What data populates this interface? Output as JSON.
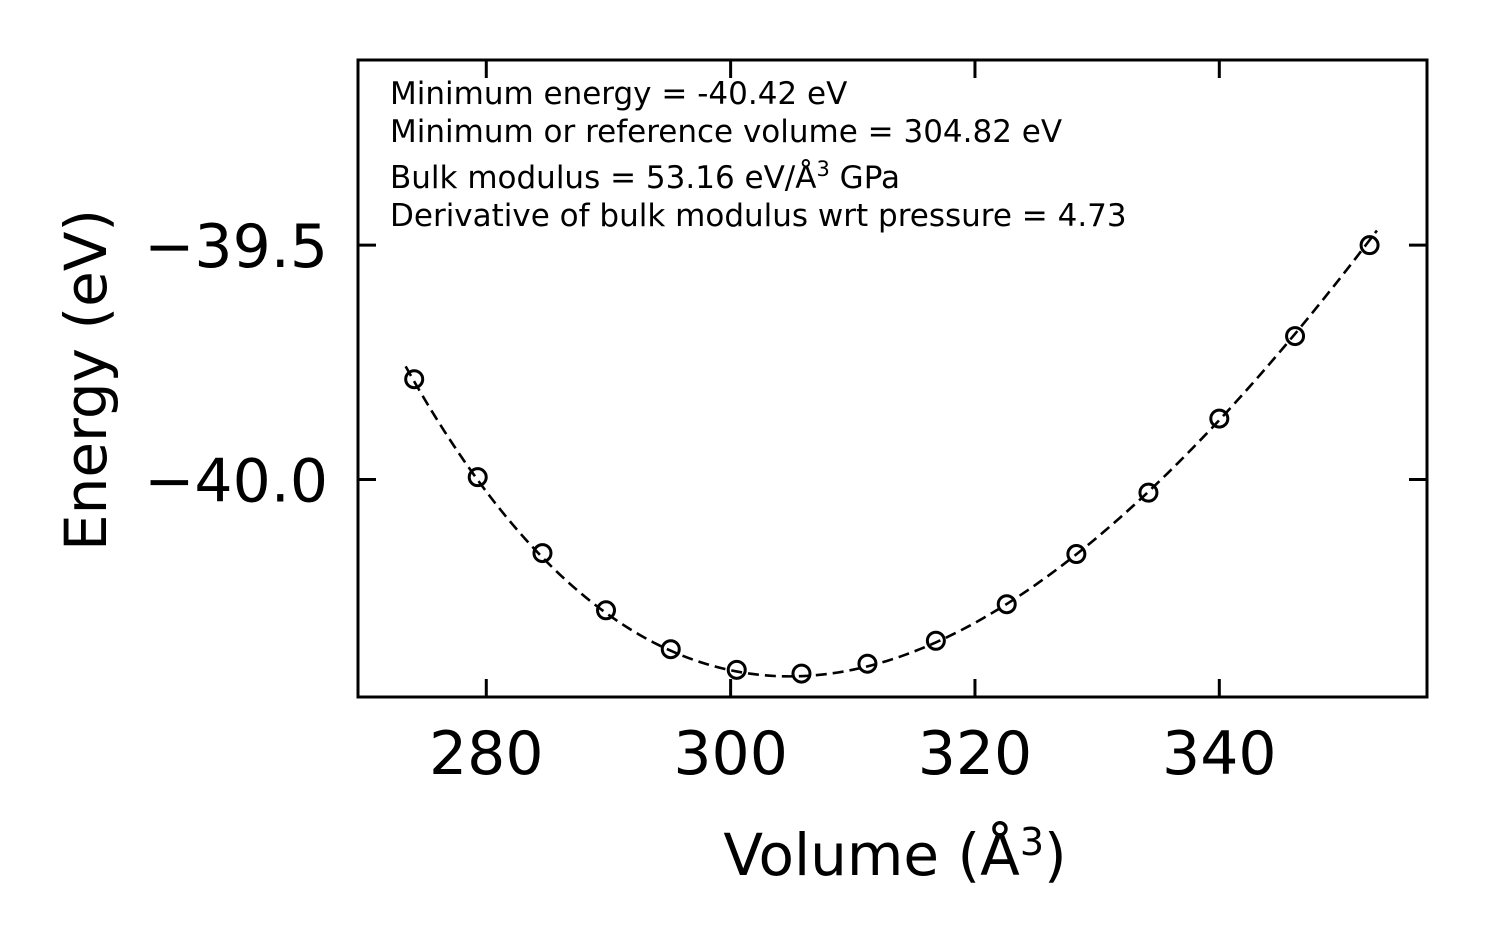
{
  "chart_data": {
    "type": "scatter",
    "title": "",
    "xlabel": "Volume (Å",
    "xlabel_sup": "3",
    "xlabel_close": ")",
    "ylabel": "Energy (eV)",
    "xlim": [
      269.5,
      357.0
    ],
    "ylim": [
      -40.464,
      -39.105
    ],
    "xticks": [
      280,
      300,
      320,
      340
    ],
    "xtick_labels": [
      "280",
      "300",
      "320",
      "340"
    ],
    "yticks": [
      -39.5,
      -40.0
    ],
    "ytick_labels": [
      "−39.5",
      "−40.0"
    ],
    "legend": "none",
    "grid": false,
    "series": [
      {
        "name": "data",
        "style": "open-circle",
        "x": [
          274.1,
          279.3,
          284.6,
          289.8,
          295.1,
          300.5,
          305.8,
          311.2,
          316.8,
          322.6,
          328.3,
          334.2,
          340.0,
          346.2,
          352.3
        ],
        "y": [
          -39.786,
          -39.995,
          -40.157,
          -40.279,
          -40.362,
          -40.406,
          -40.414,
          -40.393,
          -40.344,
          -40.266,
          -40.159,
          -40.028,
          -39.87,
          -39.694,
          -39.5
        ]
      },
      {
        "name": "fit",
        "style": "dashed-line",
        "fit": {
          "E0": -40.42,
          "V0": 304.82,
          "B0_eV_per_A3": 0.3318,
          "B0_prime": 4.73,
          "x_range": [
            273.4,
            352.9
          ]
        }
      }
    ],
    "annotations": [
      "Minimum energy = -40.42 eV",
      "Minimum or reference volume = 304.82 eV",
      "Bulk modulus = 53.16 eV/Å",
      "3",
      " GPa",
      "Derivative of bulk modulus wrt pressure = 4.73"
    ]
  }
}
